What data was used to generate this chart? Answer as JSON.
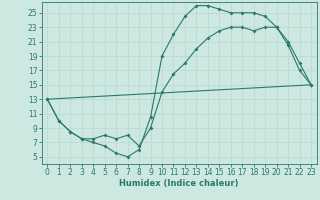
{
  "xlabel": "Humidex (Indice chaleur)",
  "background_color": "#cce8e0",
  "line_color": "#2a7a6a",
  "xlim": [
    -0.5,
    23.5
  ],
  "ylim": [
    4,
    26.5
  ],
  "xticks": [
    0,
    1,
    2,
    3,
    4,
    5,
    6,
    7,
    8,
    9,
    10,
    11,
    12,
    13,
    14,
    15,
    16,
    17,
    18,
    19,
    20,
    21,
    22,
    23
  ],
  "yticks": [
    5,
    7,
    9,
    11,
    13,
    15,
    17,
    19,
    21,
    23,
    25
  ],
  "line1_x": [
    0,
    1,
    2,
    3,
    4,
    5,
    6,
    7,
    8,
    9,
    10,
    11,
    12,
    13,
    14,
    15,
    16,
    17,
    18,
    19,
    20,
    21,
    22,
    23
  ],
  "line1_y": [
    13,
    10,
    8.5,
    7.5,
    7,
    6.5,
    5.5,
    5,
    6,
    10.5,
    19,
    22,
    24.5,
    26,
    26,
    25.5,
    25,
    25,
    25,
    24.5,
    23,
    20.5,
    17,
    15
  ],
  "line2_x": [
    0,
    1,
    2,
    3,
    4,
    5,
    6,
    7,
    8,
    9,
    10,
    11,
    12,
    13,
    14,
    15,
    16,
    17,
    18,
    19,
    20,
    21,
    22,
    23
  ],
  "line2_y": [
    13,
    10,
    8.5,
    7.5,
    7.5,
    8,
    7.5,
    8,
    6.5,
    9,
    14,
    16.5,
    18,
    20,
    21.5,
    22.5,
    23,
    23,
    22.5,
    23,
    23,
    21,
    18,
    15
  ],
  "line3_x": [
    0,
    23
  ],
  "line3_y": [
    13,
    15
  ],
  "grid_color": "#b8d8d0",
  "xlabel_fontsize": 6.0,
  "tick_fontsize": 5.5
}
